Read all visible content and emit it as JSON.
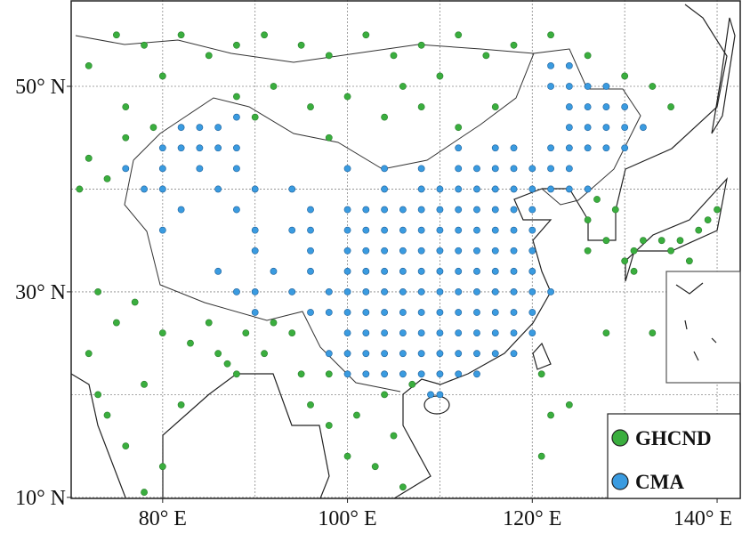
{
  "map": {
    "xlim": [
      70.1,
      142.5
    ],
    "ylim": [
      9.9,
      58.4
    ],
    "grid_lons": [
      80,
      90,
      100,
      110,
      120,
      130,
      140
    ],
    "grid_lats": [
      10,
      20,
      30,
      40,
      50
    ],
    "lat_ticks": [
      {
        "value": 50,
        "label": "50° N"
      },
      {
        "value": 30,
        "label": "30° N"
      },
      {
        "value": 10,
        "label": "10° N"
      }
    ],
    "lon_ticks": [
      {
        "value": 80,
        "label": "80° E"
      },
      {
        "value": 100,
        "label": "100° E"
      },
      {
        "value": 120,
        "label": "120° E"
      },
      {
        "value": 140,
        "label": "140° E"
      }
    ],
    "series": [
      {
        "name": "GHCND",
        "color": "#3aae3e",
        "points": [
          [
            75,
            55
          ],
          [
            78,
            54
          ],
          [
            82,
            55
          ],
          [
            85,
            53
          ],
          [
            88,
            54
          ],
          [
            91,
            55
          ],
          [
            95,
            54
          ],
          [
            98,
            53
          ],
          [
            102,
            55
          ],
          [
            105,
            53
          ],
          [
            108,
            54
          ],
          [
            112,
            55
          ],
          [
            115,
            53
          ],
          [
            118,
            54
          ],
          [
            122,
            55
          ],
          [
            126,
            53
          ],
          [
            130,
            51
          ],
          [
            133,
            50
          ],
          [
            135,
            48
          ],
          [
            88,
            49
          ],
          [
            92,
            50
          ],
          [
            96,
            48
          ],
          [
            100,
            49
          ],
          [
            104,
            47
          ],
          [
            108,
            48
          ],
          [
            112,
            46
          ],
          [
            116,
            48
          ],
          [
            106,
            50
          ],
          [
            110,
            51
          ],
          [
            98,
            45
          ],
          [
            90,
            47
          ],
          [
            76,
            48
          ],
          [
            72,
            52
          ],
          [
            80,
            51
          ],
          [
            72,
            43
          ],
          [
            74,
            41
          ],
          [
            71,
            40
          ],
          [
            76,
            45
          ],
          [
            79,
            46
          ],
          [
            73,
            30
          ],
          [
            75,
            27
          ],
          [
            77,
            29
          ],
          [
            80,
            26
          ],
          [
            83,
            25
          ],
          [
            86,
            24
          ],
          [
            88,
            22
          ],
          [
            85,
            27
          ],
          [
            78,
            21
          ],
          [
            74,
            18
          ],
          [
            76,
            15
          ],
          [
            80,
            13
          ],
          [
            78,
            10.5
          ],
          [
            73,
            20
          ],
          [
            72,
            24
          ],
          [
            82,
            19
          ],
          [
            87,
            23
          ],
          [
            91,
            24
          ],
          [
            89,
            26
          ],
          [
            92,
            27
          ],
          [
            94,
            26
          ],
          [
            95,
            22
          ],
          [
            96,
            19
          ],
          [
            98,
            17
          ],
          [
            100,
            14
          ],
          [
            103,
            13
          ],
          [
            106,
            11
          ],
          [
            105,
            16
          ],
          [
            101,
            18
          ],
          [
            104,
            20
          ],
          [
            107,
            21
          ],
          [
            98,
            22
          ],
          [
            126,
            37
          ],
          [
            128,
            35
          ],
          [
            127,
            39
          ],
          [
            129,
            38
          ],
          [
            126,
            34
          ],
          [
            130,
            33
          ],
          [
            131,
            34
          ],
          [
            132,
            35
          ],
          [
            134,
            35
          ],
          [
            135,
            34
          ],
          [
            136,
            35
          ],
          [
            138,
            36
          ],
          [
            139,
            37
          ],
          [
            137,
            33
          ],
          [
            140,
            38
          ],
          [
            131,
            32
          ],
          [
            133,
            26
          ],
          [
            128,
            26
          ],
          [
            124,
            19
          ],
          [
            122,
            18
          ],
          [
            121,
            14
          ],
          [
            121,
            22
          ]
        ]
      },
      {
        "name": "CMA",
        "color": "#3a9be0",
        "points": [
          [
            112,
            42
          ],
          [
            114,
            42
          ],
          [
            116,
            42
          ],
          [
            118,
            42
          ],
          [
            120,
            42
          ],
          [
            122,
            42
          ],
          [
            124,
            42
          ],
          [
            104,
            40
          ],
          [
            108,
            40
          ],
          [
            110,
            40
          ],
          [
            112,
            40
          ],
          [
            114,
            40
          ],
          [
            116,
            40
          ],
          [
            118,
            40
          ],
          [
            120,
            40
          ],
          [
            122,
            40
          ],
          [
            124,
            40
          ],
          [
            126,
            40
          ],
          [
            100,
            38
          ],
          [
            102,
            38
          ],
          [
            104,
            38
          ],
          [
            106,
            38
          ],
          [
            108,
            38
          ],
          [
            110,
            38
          ],
          [
            112,
            38
          ],
          [
            114,
            38
          ],
          [
            116,
            38
          ],
          [
            118,
            38
          ],
          [
            120,
            38
          ],
          [
            96,
            36
          ],
          [
            100,
            36
          ],
          [
            102,
            36
          ],
          [
            104,
            36
          ],
          [
            106,
            36
          ],
          [
            108,
            36
          ],
          [
            110,
            36
          ],
          [
            112,
            36
          ],
          [
            114,
            36
          ],
          [
            116,
            36
          ],
          [
            118,
            36
          ],
          [
            120,
            36
          ],
          [
            100,
            34
          ],
          [
            102,
            34
          ],
          [
            104,
            34
          ],
          [
            106,
            34
          ],
          [
            108,
            34
          ],
          [
            110,
            34
          ],
          [
            112,
            34
          ],
          [
            114,
            34
          ],
          [
            116,
            34
          ],
          [
            118,
            34
          ],
          [
            120,
            34
          ],
          [
            100,
            32
          ],
          [
            102,
            32
          ],
          [
            104,
            32
          ],
          [
            106,
            32
          ],
          [
            108,
            32
          ],
          [
            110,
            32
          ],
          [
            112,
            32
          ],
          [
            114,
            32
          ],
          [
            116,
            32
          ],
          [
            118,
            32
          ],
          [
            120,
            32
          ],
          [
            98,
            30
          ],
          [
            100,
            30
          ],
          [
            102,
            30
          ],
          [
            104,
            30
          ],
          [
            106,
            30
          ],
          [
            108,
            30
          ],
          [
            110,
            30
          ],
          [
            112,
            30
          ],
          [
            114,
            30
          ],
          [
            116,
            30
          ],
          [
            118,
            30
          ],
          [
            120,
            30
          ],
          [
            122,
            30
          ],
          [
            98,
            28
          ],
          [
            100,
            28
          ],
          [
            102,
            28
          ],
          [
            104,
            28
          ],
          [
            106,
            28
          ],
          [
            108,
            28
          ],
          [
            110,
            28
          ],
          [
            112,
            28
          ],
          [
            114,
            28
          ],
          [
            116,
            28
          ],
          [
            118,
            28
          ],
          [
            120,
            28
          ],
          [
            100,
            26
          ],
          [
            102,
            26
          ],
          [
            104,
            26
          ],
          [
            106,
            26
          ],
          [
            108,
            26
          ],
          [
            110,
            26
          ],
          [
            112,
            26
          ],
          [
            114,
            26
          ],
          [
            116,
            26
          ],
          [
            118,
            26
          ],
          [
            120,
            26
          ],
          [
            98,
            24
          ],
          [
            100,
            24
          ],
          [
            102,
            24
          ],
          [
            104,
            24
          ],
          [
            106,
            24
          ],
          [
            108,
            24
          ],
          [
            110,
            24
          ],
          [
            112,
            24
          ],
          [
            114,
            24
          ],
          [
            116,
            24
          ],
          [
            118,
            24
          ],
          [
            100,
            22
          ],
          [
            102,
            22
          ],
          [
            104,
            22
          ],
          [
            106,
            22
          ],
          [
            108,
            22
          ],
          [
            110,
            22
          ],
          [
            112,
            22
          ],
          [
            114,
            22
          ],
          [
            109,
            20
          ],
          [
            110,
            20
          ],
          [
            122,
            44
          ],
          [
            124,
            44
          ],
          [
            126,
            44
          ],
          [
            128,
            44
          ],
          [
            130,
            44
          ],
          [
            124,
            46
          ],
          [
            126,
            46
          ],
          [
            128,
            46
          ],
          [
            130,
            46
          ],
          [
            132,
            46
          ],
          [
            124,
            48
          ],
          [
            126,
            48
          ],
          [
            128,
            48
          ],
          [
            130,
            48
          ],
          [
            122,
            50
          ],
          [
            124,
            50
          ],
          [
            126,
            50
          ],
          [
            128,
            50
          ],
          [
            122,
            52
          ],
          [
            124,
            52
          ],
          [
            80,
            44
          ],
          [
            82,
            44
          ],
          [
            84,
            44
          ],
          [
            86,
            44
          ],
          [
            88,
            44
          ],
          [
            76,
            42
          ],
          [
            80,
            42
          ],
          [
            84,
            42
          ],
          [
            88,
            42
          ],
          [
            78,
            40
          ],
          [
            80,
            40
          ],
          [
            86,
            40
          ],
          [
            90,
            40
          ],
          [
            94,
            40
          ],
          [
            82,
            38
          ],
          [
            88,
            38
          ],
          [
            96,
            38
          ],
          [
            80,
            36
          ],
          [
            90,
            36
          ],
          [
            94,
            36
          ],
          [
            90,
            34
          ],
          [
            96,
            34
          ],
          [
            86,
            32
          ],
          [
            92,
            32
          ],
          [
            96,
            32
          ],
          [
            88,
            30
          ],
          [
            90,
            30
          ],
          [
            94,
            30
          ],
          [
            90,
            28
          ],
          [
            96,
            28
          ],
          [
            82,
            46
          ],
          [
            84,
            46
          ],
          [
            86,
            46
          ],
          [
            88,
            47
          ],
          [
            100,
            42
          ],
          [
            104,
            42
          ],
          [
            108,
            42
          ],
          [
            112,
            44
          ],
          [
            116,
            44
          ],
          [
            118,
            44
          ]
        ]
      }
    ]
  }
}
